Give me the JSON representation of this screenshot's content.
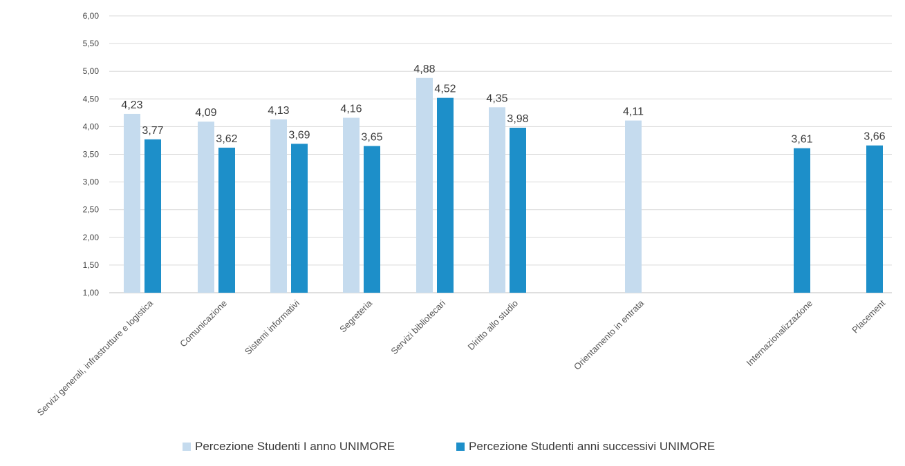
{
  "chart_data": {
    "type": "bar",
    "categories": [
      "Servizi generali, infrastrutture e logistica",
      "Comunicazione",
      "Sistemi informativi",
      "Segreteria",
      "Servizi bibliotecari",
      "Diritto allo studio",
      "Orientamento in entrata",
      "Internazionalizzazione",
      "Placement"
    ],
    "series": [
      {
        "name": "Percezione Studenti I anno UNIMORE",
        "color": "#c5dbee",
        "values": [
          4.23,
          4.09,
          4.13,
          4.16,
          4.88,
          4.35,
          4.11,
          null,
          null
        ],
        "labels": [
          "4,23",
          "4,09",
          "4,13",
          "4,16",
          "4,88",
          "4,35",
          "4,11",
          "",
          ""
        ]
      },
      {
        "name": "Percezione  Studenti anni successivi UNIMORE",
        "color": "#1d8fc9",
        "values": [
          3.77,
          3.62,
          3.69,
          3.65,
          4.52,
          3.98,
          null,
          3.61,
          3.66
        ],
        "labels": [
          "3,77",
          "3,62",
          "3,69",
          "3,65",
          "4,52",
          "3,98",
          "",
          "3,61",
          "3,66"
        ]
      }
    ],
    "ylim": [
      1.0,
      6.0
    ],
    "yticks": [
      "1,00",
      "1,50",
      "2,00",
      "2,50",
      "3,00",
      "3,50",
      "4,00",
      "4,50",
      "5,00",
      "5,50",
      "6,00"
    ],
    "title": "",
    "xlabel": "",
    "ylabel": "",
    "grid": true,
    "legend_position": "bottom"
  }
}
